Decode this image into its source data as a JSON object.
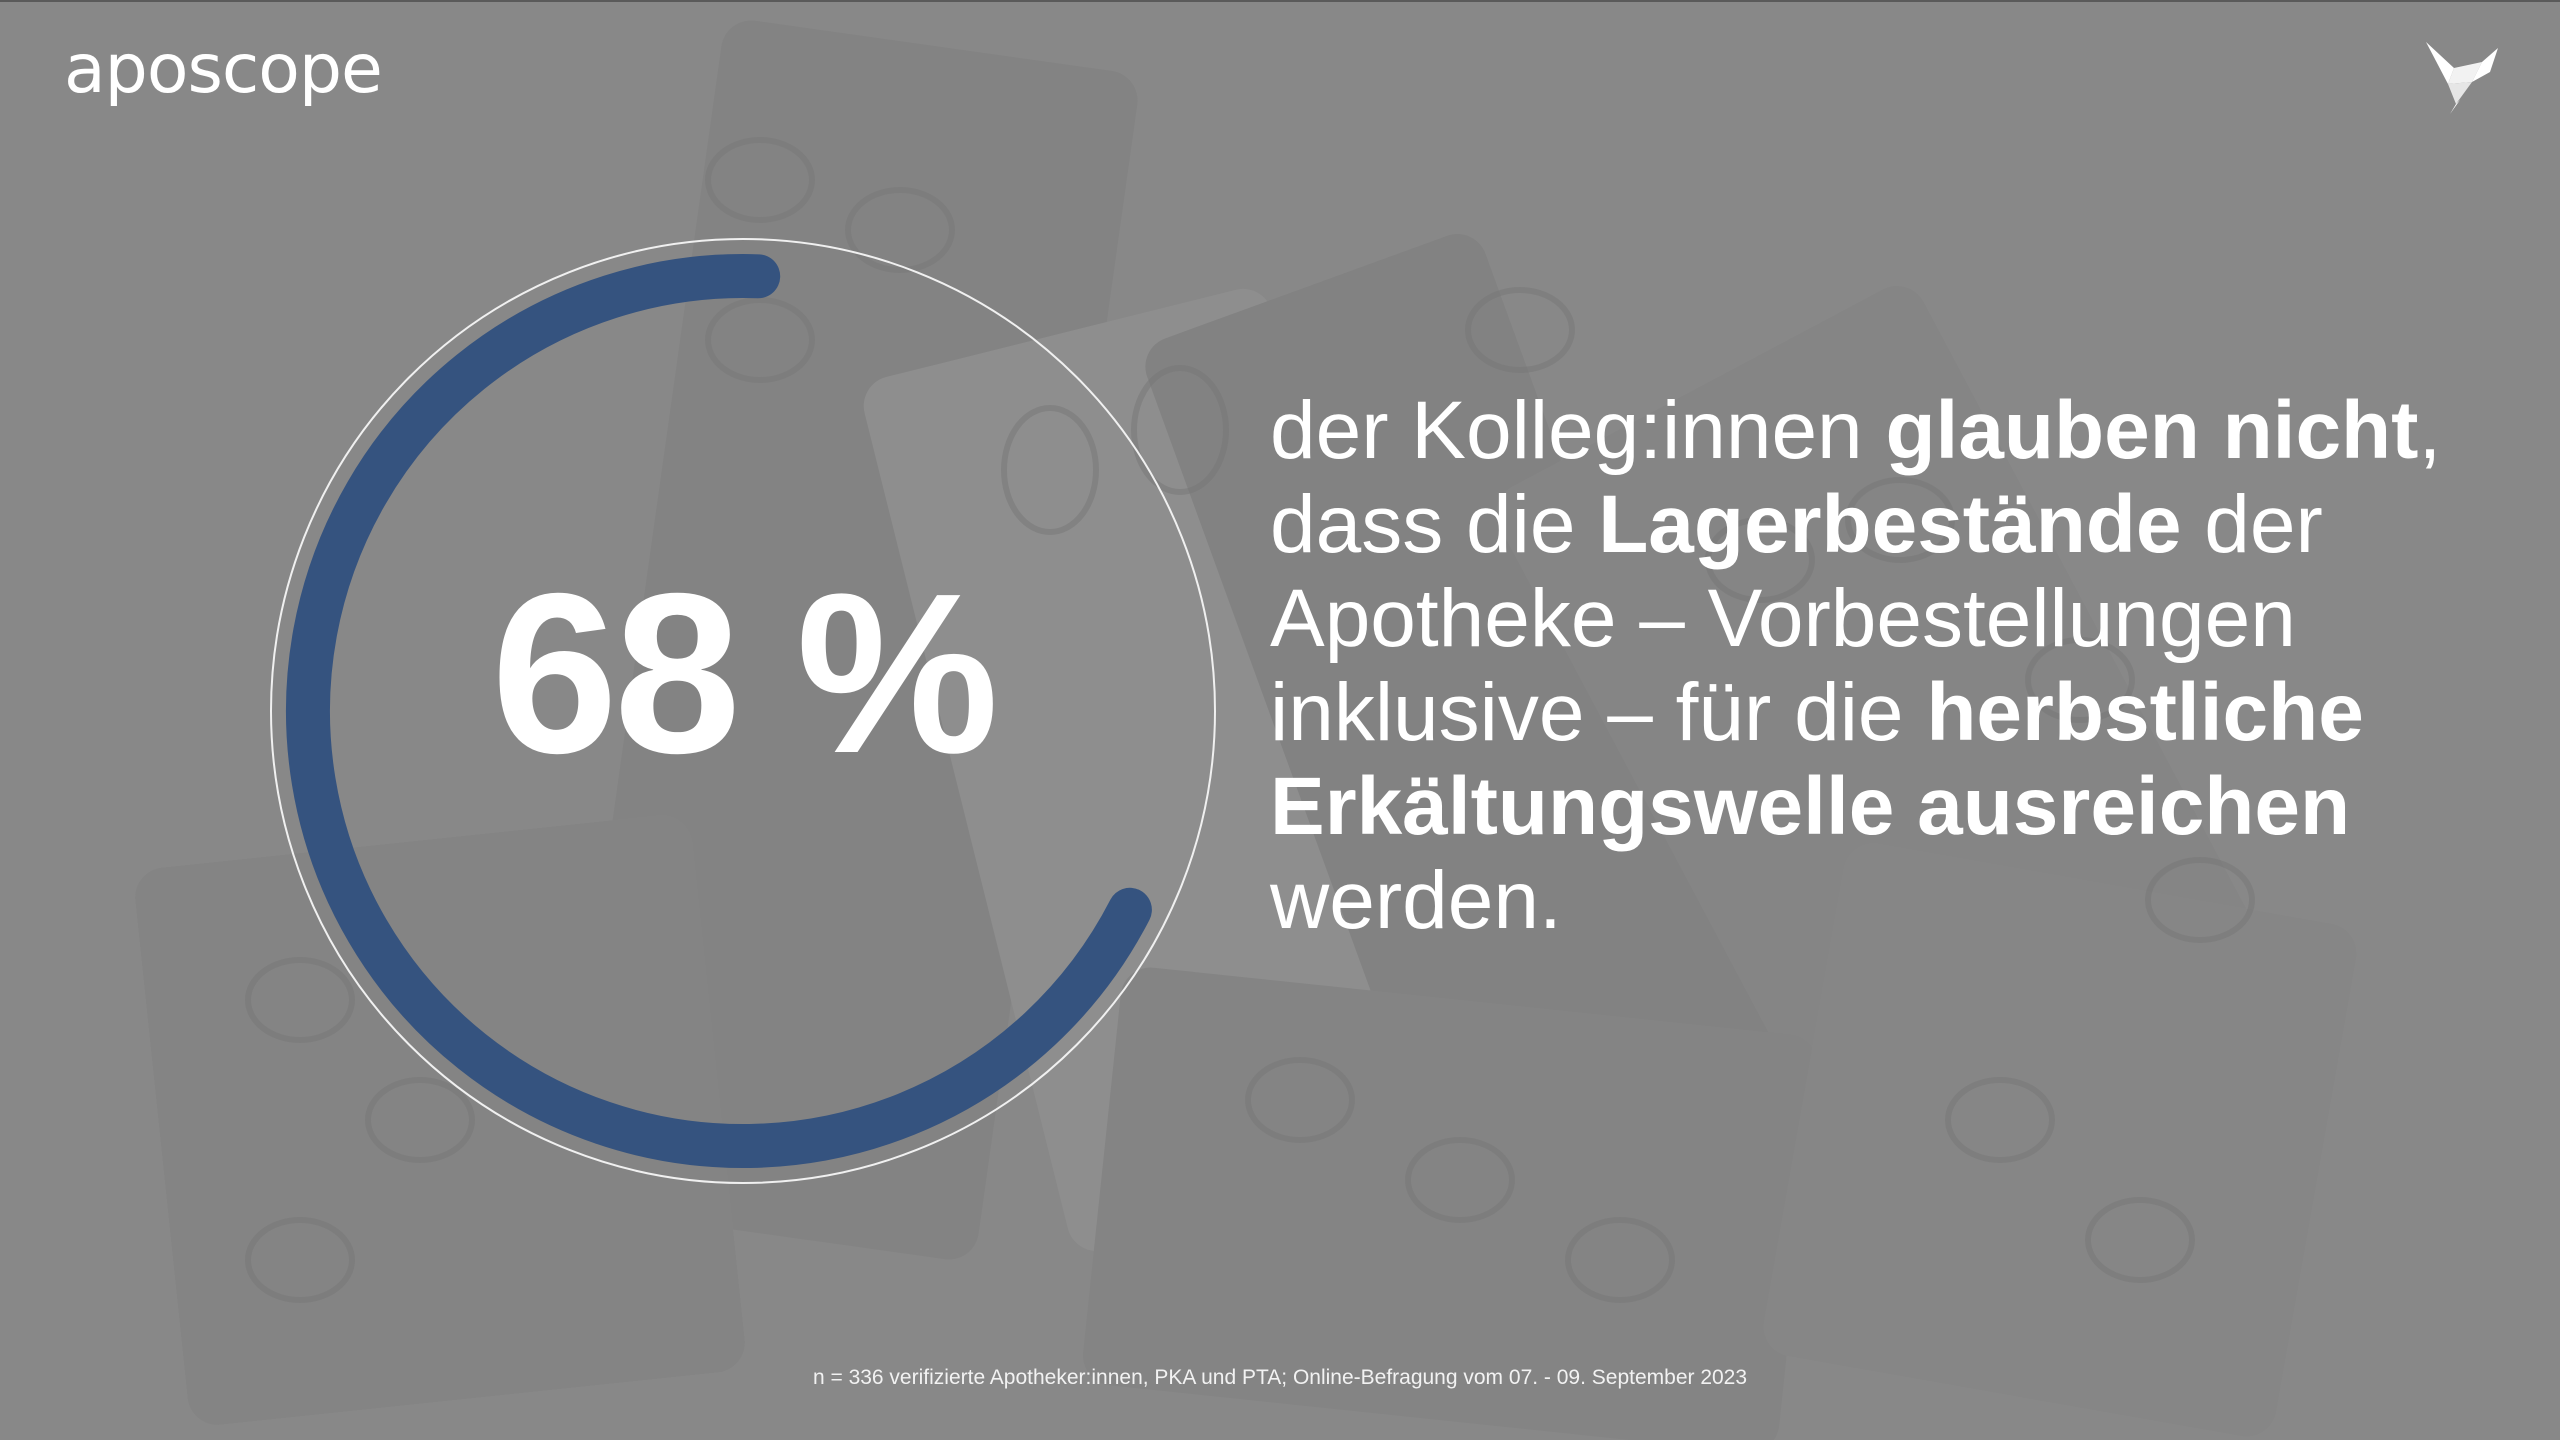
{
  "brand": {
    "logo_text": "aposcope",
    "bird_icon": "origami-bird-icon"
  },
  "stat": {
    "value_label": "68 %",
    "fraction": 0.68
  },
  "statement": {
    "segments": [
      {
        "text": "der Kolleg:innen ",
        "bold": false
      },
      {
        "text": "glauben nicht",
        "bold": true
      },
      {
        "text": ", dass die ",
        "bold": false
      },
      {
        "text": "Lagerbestände",
        "bold": true
      },
      {
        "text": " der Apotheke – Vorbestellungen inklusive – für die ",
        "bold": false
      },
      {
        "text": "herbstliche Erkältungswelle ausreichen",
        "bold": true
      },
      {
        "text": " werden.",
        "bold": false
      }
    ]
  },
  "footnote": "n = 336 verifizierte Apotheker:innen, PKA und PTA; Online-Befragung vom 07. - 09. September 2023",
  "colors": {
    "background": "#8a8a8a",
    "arc": "#35537f",
    "text": "#ffffff",
    "circle_outline": "#f0f0f0"
  }
}
